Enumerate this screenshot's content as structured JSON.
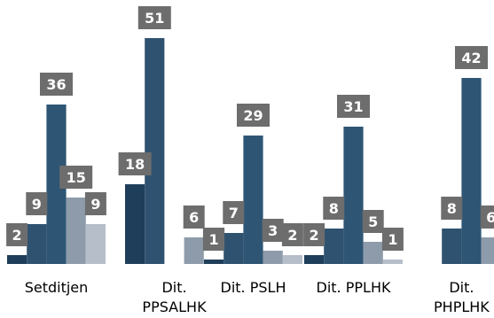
{
  "chart_data": {
    "type": "bar",
    "categories": [
      [
        "Setditjen"
      ],
      [
        "Dit.",
        "PPSALHK"
      ],
      [
        "Dit. PSLH"
      ],
      [
        "Dit. PPLHK"
      ],
      [
        "Dit.",
        "PHPLHK"
      ]
    ],
    "series": [
      {
        "color": "#1f3e5a",
        "values": [
          2,
          18,
          1,
          2,
          0
        ]
      },
      {
        "color": "#2f5270",
        "values": [
          9,
          51,
          7,
          8,
          8
        ]
      },
      {
        "color": "#2e5574",
        "values": [
          36,
          0,
          29,
          31,
          42
        ]
      },
      {
        "color": "#8e9baa",
        "values": [
          15,
          6,
          3,
          5,
          6
        ]
      },
      {
        "color": "#b6bec9",
        "values": [
          9,
          1,
          2,
          1,
          0
        ]
      }
    ],
    "ylim": [
      0,
      55
    ],
    "grid": false,
    "legend": "none",
    "label_box_color": "#6d6d6d"
  }
}
